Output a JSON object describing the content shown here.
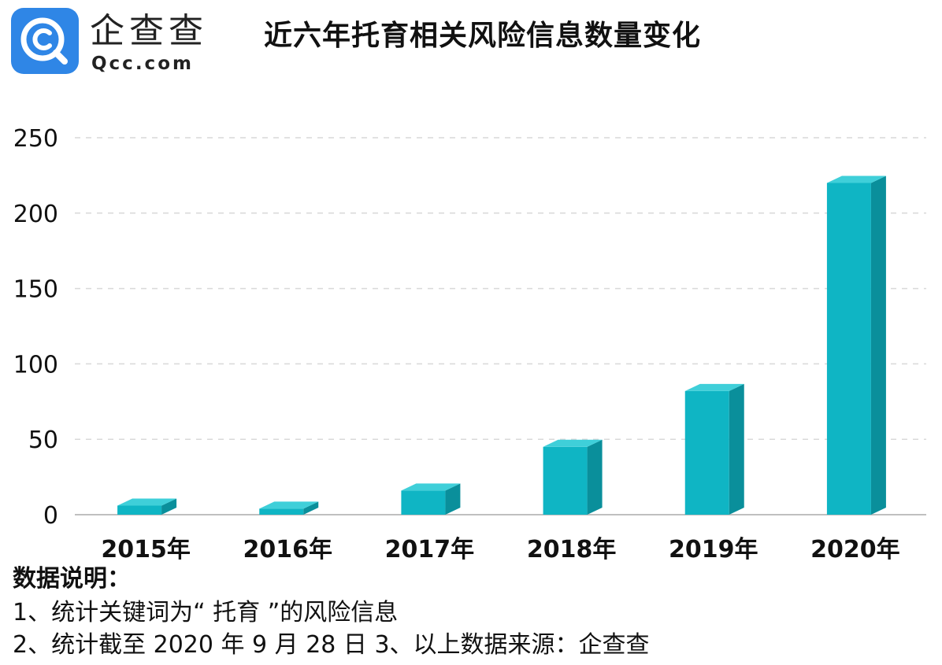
{
  "header": {
    "logo_name": "企查查",
    "logo_domain": "Qcc.com",
    "title": "近六年托育相关风险信息数量变化"
  },
  "notes": {
    "heading": "数据说明：",
    "line1": "1、统计关键词为“ 托育 ”的风险信息",
    "line2": "2、统计截至 2020 年 9 月 28 日  3、以上数据来源：企查查"
  },
  "colors": {
    "brand": "#2f86e6",
    "bar_front": "#0fb5c4",
    "bar_side": "#0a8f9b",
    "bar_top": "#3fcfd9"
  },
  "chart_data": {
    "type": "bar",
    "title": "近六年托育相关风险信息数量变化",
    "categories": [
      "2015年",
      "2016年",
      "2017年",
      "2018年",
      "2019年",
      "2020年"
    ],
    "values": [
      6,
      4,
      16,
      45,
      82,
      220
    ],
    "ylim": [
      0,
      250
    ],
    "yticks": [
      0,
      50,
      100,
      150,
      200,
      250
    ],
    "grid": true,
    "legend": "none"
  }
}
